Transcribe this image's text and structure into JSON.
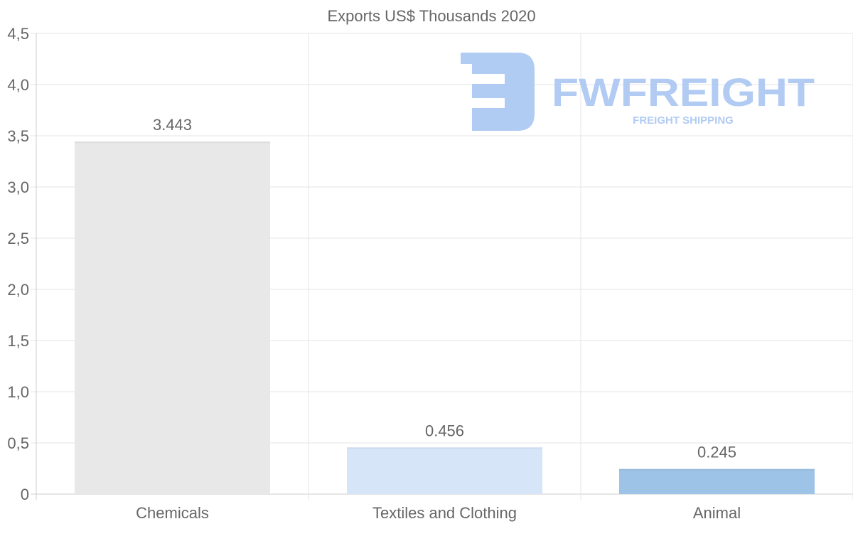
{
  "chart_data": {
    "type": "bar",
    "title": "Exports US$ Thousands 2020",
    "categories": [
      "Chemicals",
      "Textiles and Clothing",
      "Animal"
    ],
    "values": [
      3.443,
      0.456,
      0.245
    ],
    "value_labels": [
      "3.443",
      "0.456",
      "0.245"
    ],
    "colors": [
      "#e8e8e8",
      "#d6e6f8",
      "#9dc3e6"
    ],
    "xlabel": "",
    "ylabel": "",
    "ylim": [
      0,
      4.5
    ],
    "y_ticks": [
      0,
      0.5,
      1,
      1.5,
      2,
      2.5,
      3,
      3.5,
      4,
      4.5
    ],
    "y_tick_labels": [
      "0",
      "0,5",
      "1,0",
      "1,5",
      "2,0",
      "2,5",
      "3,0",
      "3,5",
      "4,0",
      "4,5"
    ],
    "grid": true,
    "legend": "none"
  },
  "watermark": {
    "brand": "FWFREIGHT",
    "tagline": "FREIGHT SHIPPING",
    "color": "#a9c6f2"
  }
}
